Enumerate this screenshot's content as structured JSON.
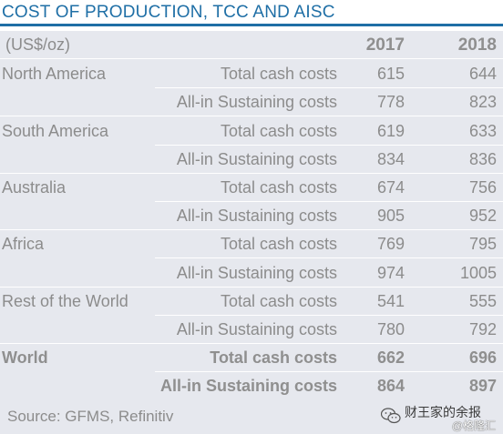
{
  "title": "COST OF PRODUCTION, TCC AND AISC",
  "header": {
    "unit": "(US$/oz)",
    "year1": "2017",
    "year2": "2018"
  },
  "rows": [
    {
      "region": "North America",
      "metric": "Total cash costs",
      "v2017": "615",
      "v2018": "644"
    },
    {
      "region": "",
      "metric": "All-in Sustaining costs",
      "v2017": "778",
      "v2018": "823"
    },
    {
      "region": "South America",
      "metric": "Total cash costs",
      "v2017": "619",
      "v2018": "633"
    },
    {
      "region": "",
      "metric": "All-in Sustaining costs",
      "v2017": "834",
      "v2018": "836"
    },
    {
      "region": "Australia",
      "metric": "Total cash costs",
      "v2017": "674",
      "v2018": "756"
    },
    {
      "region": "",
      "metric": "All-in Sustaining costs",
      "v2017": "905",
      "v2018": "952"
    },
    {
      "region": "Africa",
      "metric": "Total cash costs",
      "v2017": "769",
      "v2018": "795"
    },
    {
      "region": "",
      "metric": "All-in Sustaining costs",
      "v2017": "974",
      "v2018": "1005"
    },
    {
      "region": "Rest of the World",
      "metric": "Total cash costs",
      "v2017": "541",
      "v2018": "555"
    },
    {
      "region": "",
      "metric": "All-in Sustaining costs",
      "v2017": "780",
      "v2018": "792"
    },
    {
      "region": "World",
      "metric": "Total cash costs",
      "v2017": "662",
      "v2018": "696"
    },
    {
      "region": "",
      "metric": "All-in Sustaining costs",
      "v2017": "864",
      "v2018": "897"
    }
  ],
  "source": "Source: GFMS, Refinitiv",
  "watermark": {
    "line1": "财王家的余报",
    "line2": "@格隆汇",
    "icon": "wechat-icon"
  },
  "colors": {
    "accent": "#1f6fa6",
    "table_bg": "#e6e8ee",
    "text": "#8c8c8c"
  }
}
